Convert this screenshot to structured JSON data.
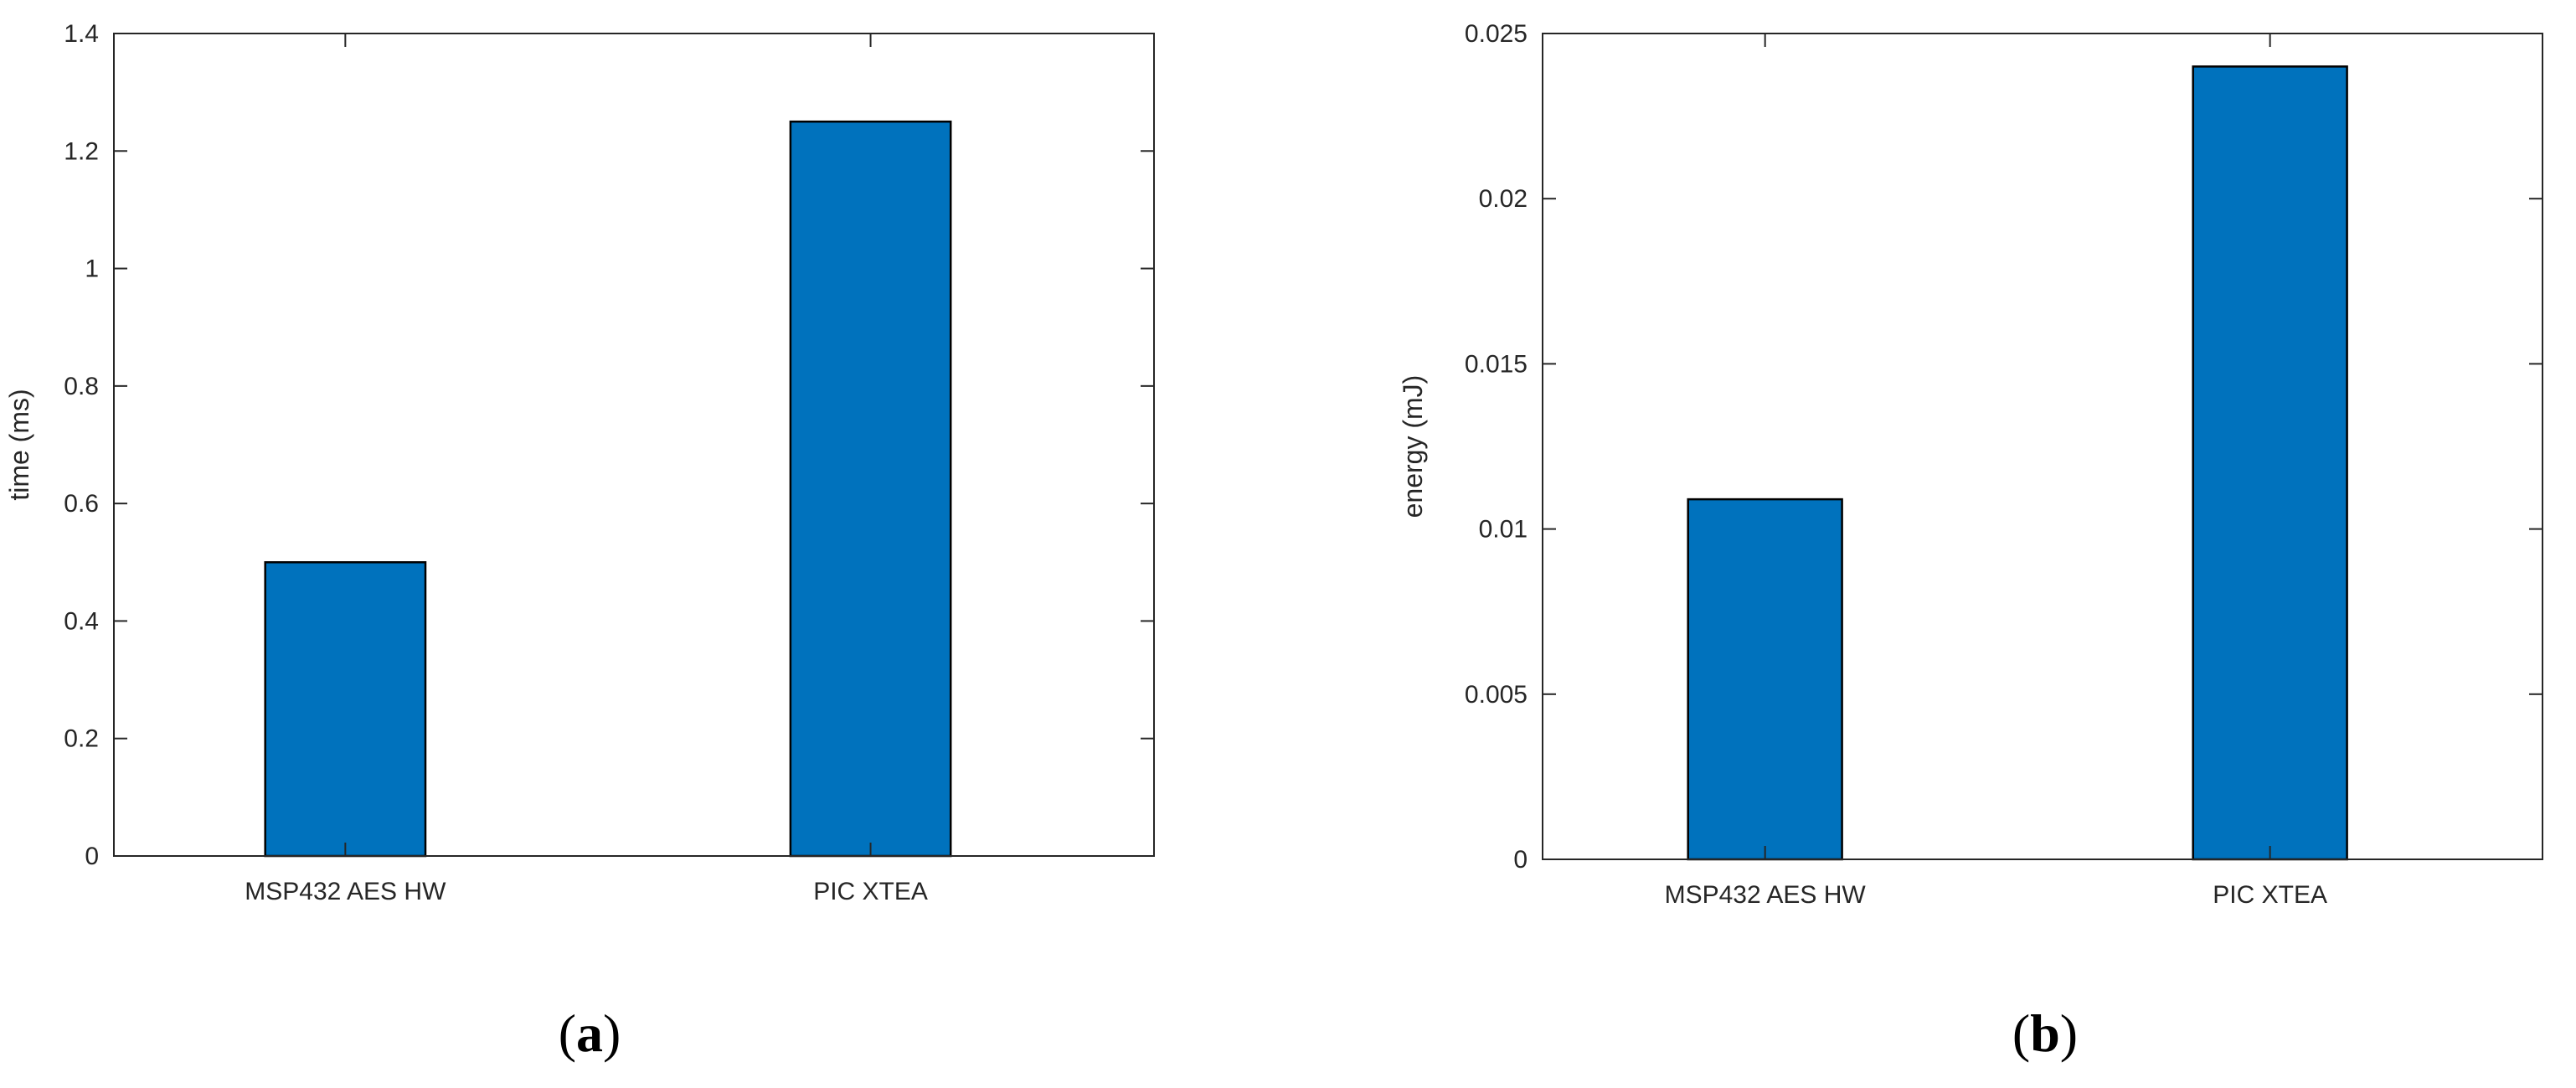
{
  "chart_data": [
    {
      "type": "bar",
      "panel_label": "a",
      "categories": [
        "MSP432 AES HW",
        "PIC XTEA"
      ],
      "values": [
        0.5,
        1.25
      ],
      "xlabel": "",
      "ylabel": "time (ms)",
      "ylim": [
        0,
        1.4
      ],
      "yticks": [
        0,
        0.2,
        0.4,
        0.6,
        0.8,
        1,
        1.2,
        1.4
      ],
      "ytick_labels": [
        "0",
        "0.2",
        "0.4",
        "0.6",
        "0.8",
        "1",
        "1.2",
        "1.4"
      ],
      "bar_color": "#0072BD",
      "grid": false,
      "legend": "none"
    },
    {
      "type": "bar",
      "panel_label": "b",
      "categories": [
        "MSP432 AES HW",
        "PIC XTEA"
      ],
      "values": [
        0.0109,
        0.024
      ],
      "xlabel": "",
      "ylabel": "energy (mJ)",
      "ylim": [
        0,
        0.025
      ],
      "yticks": [
        0,
        0.005,
        0.01,
        0.015,
        0.02,
        0.025
      ],
      "ytick_labels": [
        "0",
        "0.005",
        "0.01",
        "0.015",
        "0.02",
        "0.025"
      ],
      "bar_color": "#0072BD",
      "grid": false,
      "legend": "none"
    }
  ]
}
